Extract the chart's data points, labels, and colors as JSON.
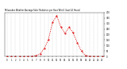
{
  "title": "Milwaukee Weather Average Solar Radiation per Hour W/m2 (Last 24 Hours)",
  "hours": [
    0,
    1,
    2,
    3,
    4,
    5,
    6,
    7,
    8,
    9,
    10,
    11,
    12,
    13,
    14,
    15,
    16,
    17,
    18,
    19,
    20,
    21,
    22,
    23
  ],
  "values": [
    0,
    0,
    0,
    0,
    0,
    0,
    2,
    8,
    25,
    75,
    155,
    310,
    370,
    270,
    210,
    265,
    215,
    125,
    50,
    8,
    2,
    0,
    0,
    0
  ],
  "line_color": "#dd0000",
  "bg_color": "#ffffff",
  "plot_bg": "#ffffff",
  "grid_color": "#bbbbbb",
  "ylim": [
    0,
    400
  ],
  "xlim": [
    -0.5,
    23.5
  ]
}
